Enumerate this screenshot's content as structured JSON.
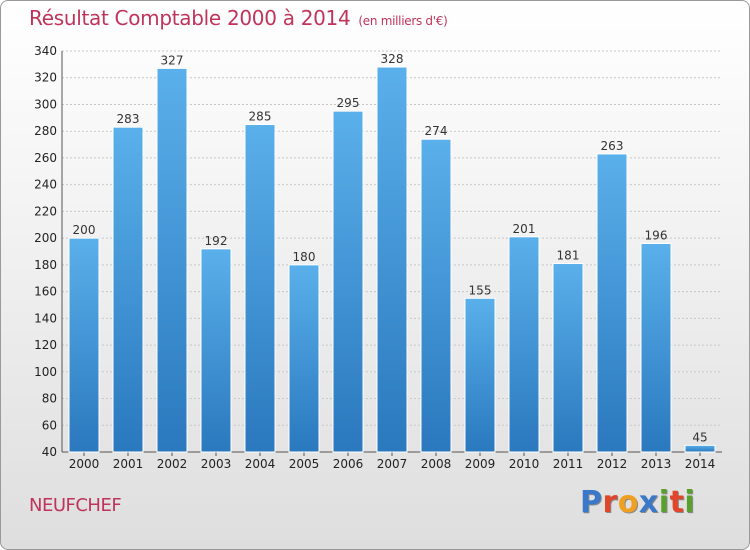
{
  "title": "Résultat Comptable 2000 à 2014",
  "subtitle": "(en milliers d'€)",
  "commune": "NEUFCHEF",
  "brand": {
    "text": "Proxiti",
    "letters": [
      {
        "ch": "P",
        "color": "#3a78c8"
      },
      {
        "ch": "r",
        "color": "#e0462a"
      },
      {
        "ch": "o",
        "color": "#f0a020"
      },
      {
        "ch": "x",
        "color": "#3a78c8"
      },
      {
        "ch": "i",
        "color": "#5aa02c"
      },
      {
        "ch": "t",
        "color": "#e0462a"
      },
      {
        "ch": "i",
        "color": "#5aa02c"
      }
    ]
  },
  "colors": {
    "bar_top": "#5ab0ea",
    "bar_bottom": "#2a78be",
    "title": "#c0345a"
  },
  "chart_data": {
    "type": "bar",
    "title": "Résultat Comptable 2000 à 2014",
    "categories": [
      "2000",
      "2001",
      "2002",
      "2003",
      "2004",
      "2005",
      "2006",
      "2007",
      "2008",
      "2009",
      "2010",
      "2011",
      "2012",
      "2013",
      "2014"
    ],
    "values": [
      200,
      283,
      327,
      192,
      285,
      180,
      295,
      328,
      274,
      155,
      201,
      181,
      263,
      196,
      45
    ],
    "ylim": [
      40,
      340
    ],
    "yticks": [
      40,
      60,
      80,
      100,
      120,
      140,
      160,
      180,
      200,
      220,
      240,
      260,
      280,
      300,
      320,
      340
    ],
    "grid": true
  }
}
